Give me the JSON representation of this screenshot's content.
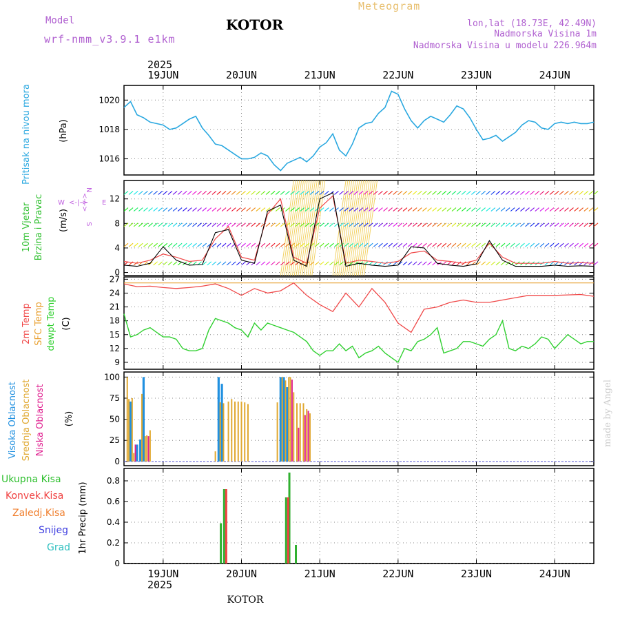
{
  "header": {
    "model_label": "Model",
    "model_name": "wrf-nmm_v3.9.1 e1km",
    "city": "KOTOR",
    "meteogram": "Meteogram",
    "coords": "lon,lat (18.73E, 42.49N)",
    "altitude": "Nadmorska Visina 1m",
    "model_altitude": "Nadmorska Visina u modelu 226.964m"
  },
  "footer_city": "KOTOR",
  "watermark": "made by Angel",
  "colors": {
    "pressure": "#2aa8e0",
    "t2m": "#f04848",
    "sfc": "#e8a030",
    "dew": "#30d030",
    "high_cloud": "#2090e0",
    "mid_cloud": "#e0a830",
    "low_cloud": "#e02090",
    "total_precip": "#30b030",
    "conv_precip": "#f04040",
    "freezing": "#f08030",
    "snow": "#4040e0",
    "hail": "#30c0c0",
    "wind_label": "#30c030",
    "compass": "#c060e0"
  },
  "time_axis": {
    "year_label": "2025",
    "days": [
      "19JUN",
      "20JUN",
      "21JUN",
      "22JUN",
      "23JUN",
      "24JUN"
    ]
  },
  "chart_data": [
    {
      "type": "line",
      "title": "Pritisak na nivou mora",
      "ylabel": "(hPa)",
      "ylim": [
        1014.9,
        1021.0
      ],
      "yticks": [
        1016,
        1018,
        1020
      ],
      "grid": true,
      "x_unit": "hours since 18JUN 12 UTC",
      "xlim": [
        0,
        144
      ],
      "series": [
        {
          "name": "Pritisak na nivou mora",
          "x": [
            0,
            2,
            4,
            6,
            8,
            10,
            12,
            14,
            16,
            18,
            20,
            22,
            24,
            26,
            28,
            30,
            32,
            34,
            36,
            38,
            40,
            42,
            44,
            46,
            48,
            50,
            52,
            54,
            56,
            58,
            60,
            62,
            64,
            66,
            68,
            70,
            72,
            74,
            76,
            78,
            80,
            82,
            84,
            86,
            88,
            90,
            92,
            94,
            96,
            98,
            100,
            102,
            104,
            106,
            108,
            110,
            112,
            114,
            116,
            118,
            120,
            122,
            124,
            126,
            128,
            130,
            132,
            134,
            136,
            138,
            140,
            142,
            144
          ],
          "values": [
            1019.5,
            1019.9,
            1019.0,
            1018.8,
            1018.5,
            1018.4,
            1018.3,
            1018.0,
            1018.1,
            1018.4,
            1018.7,
            1018.9,
            1018.1,
            1017.6,
            1017.0,
            1016.9,
            1016.6,
            1016.3,
            1016.0,
            1016.0,
            1016.1,
            1016.4,
            1016.2,
            1015.6,
            1015.2,
            1015.7,
            1015.9,
            1016.1,
            1015.8,
            1016.2,
            1016.8,
            1017.1,
            1017.7,
            1016.6,
            1016.2,
            1017.0,
            1018.1,
            1018.4,
            1018.5,
            1019.1,
            1019.5,
            1020.6,
            1020.4,
            1019.4,
            1018.6,
            1018.1,
            1018.6,
            1018.9,
            1018.7,
            1018.5,
            1019.0,
            1019.6,
            1019.4,
            1018.8,
            1018.0,
            1017.3,
            1017.4,
            1017.6,
            1017.2,
            1017.5,
            1017.8,
            1018.3,
            1018.6,
            1018.5,
            1018.1,
            1018.0,
            1018.4,
            1018.5,
            1018.4,
            1018.5,
            1018.4,
            1018.4,
            1018.5
          ]
        }
      ]
    },
    {
      "type": "line",
      "title": "10m Vjetar Brzina i Pravac",
      "ylabel": "(m/s)",
      "ylim": [
        -0.5,
        15
      ],
      "yticks": [
        0,
        4,
        8,
        12
      ],
      "grid": true,
      "x_unit": "hours since 18JUN 12 UTC",
      "compass": {
        "north": "N",
        "south": "S",
        "west": "W",
        "east": "E"
      },
      "series": [
        {
          "name": "speed",
          "x": [
            0,
            4,
            8,
            12,
            16,
            20,
            24,
            28,
            32,
            36,
            40,
            44,
            48,
            52,
            56,
            60,
            64,
            68,
            72,
            76,
            80,
            84,
            88,
            92,
            96,
            100,
            104,
            108,
            112,
            116,
            120,
            124,
            128,
            132,
            136,
            140,
            144
          ],
          "values": [
            1.2,
            1.0,
            1.5,
            4.2,
            2.0,
            1.2,
            1.3,
            6.5,
            7.0,
            2.0,
            1.5,
            10.0,
            11.0,
            2.0,
            1.0,
            12.0,
            13.0,
            1.0,
            1.5,
            1.2,
            1.0,
            1.2,
            4.2,
            4.0,
            1.5,
            1.2,
            1.0,
            1.4,
            5.2,
            2.0,
            1.0,
            1.0,
            1.0,
            1.2,
            1.0,
            1.1,
            1.0
          ]
        },
        {
          "name": "gusts",
          "x": [
            0,
            4,
            8,
            12,
            16,
            20,
            24,
            28,
            32,
            36,
            40,
            44,
            48,
            52,
            56,
            60,
            64,
            68,
            72,
            76,
            80,
            84,
            88,
            92,
            96,
            100,
            104,
            108,
            112,
            116,
            120,
            124,
            128,
            132,
            136,
            140,
            144
          ],
          "values": [
            1.8,
            1.5,
            2.0,
            3.0,
            2.5,
            1.8,
            2.0,
            5.5,
            7.5,
            2.5,
            2.0,
            9.5,
            12.0,
            2.5,
            1.5,
            10.5,
            12.5,
            1.5,
            2.0,
            1.8,
            1.5,
            1.8,
            3.2,
            3.5,
            2.0,
            1.8,
            1.5,
            2.0,
            4.8,
            2.5,
            1.5,
            1.5,
            1.5,
            1.8,
            1.5,
            1.6,
            1.5
          ]
        }
      ]
    },
    {
      "type": "line",
      "title": "2m Temp / SFC Temp / dewpt Temp",
      "ylabel": "(C)",
      "ylim": [
        7.5,
        27.5
      ],
      "yticks": [
        9,
        12,
        15,
        18,
        21,
        24,
        27
      ],
      "grid": true,
      "x_unit": "hours since 18JUN 12 UTC",
      "series": [
        {
          "name": "2m Temp",
          "x": [
            0,
            4,
            8,
            12,
            16,
            20,
            24,
            28,
            32,
            36,
            40,
            44,
            48,
            52,
            56,
            60,
            64,
            68,
            72,
            76,
            80,
            84,
            88,
            92,
            96,
            100,
            104,
            108,
            112,
            116,
            120,
            124,
            128,
            132,
            136,
            140,
            144
          ],
          "values": [
            26.0,
            25.4,
            25.5,
            25.2,
            25.0,
            25.2,
            25.5,
            26.0,
            25.0,
            23.5,
            25.0,
            24.0,
            24.5,
            26.2,
            23.5,
            21.5,
            20.0,
            24.0,
            21.0,
            25.0,
            22.0,
            17.5,
            15.5,
            20.5,
            21.0,
            22.0,
            22.5,
            22.0,
            22.0,
            22.5,
            23.0,
            23.5,
            23.5,
            23.5,
            23.6,
            23.7,
            23.3
          ]
        },
        {
          "name": "SFC Temp",
          "x": [
            0,
            144
          ],
          "values": [
            26.2,
            26.2
          ]
        },
        {
          "name": "dewpt Temp",
          "x": [
            0,
            2,
            4,
            6,
            8,
            10,
            12,
            14,
            16,
            18,
            20,
            22,
            24,
            26,
            28,
            30,
            32,
            34,
            36,
            38,
            40,
            42,
            44,
            46,
            48,
            50,
            52,
            54,
            56,
            58,
            60,
            62,
            64,
            66,
            68,
            70,
            72,
            74,
            76,
            78,
            80,
            82,
            84,
            86,
            88,
            90,
            92,
            94,
            96,
            98,
            100,
            102,
            104,
            106,
            108,
            110,
            112,
            114,
            116,
            118,
            120,
            122,
            124,
            126,
            128,
            130,
            132,
            134,
            136,
            138,
            140,
            142,
            144
          ],
          "values": [
            19.5,
            14.5,
            15.0,
            16.0,
            16.5,
            15.5,
            14.5,
            14.5,
            14.0,
            12.0,
            11.5,
            11.5,
            12.0,
            16.0,
            18.5,
            18.0,
            17.5,
            16.5,
            16.0,
            14.5,
            17.5,
            16.0,
            17.5,
            17.0,
            16.5,
            16.0,
            15.5,
            14.5,
            13.5,
            11.5,
            10.5,
            11.5,
            11.5,
            13.0,
            11.5,
            12.5,
            10.0,
            11.0,
            11.5,
            12.5,
            11.0,
            10.0,
            9.0,
            12.0,
            11.5,
            13.5,
            14.0,
            15.0,
            16.5,
            11.0,
            11.5,
            12.0,
            13.5,
            13.5,
            13.0,
            12.5,
            14.0,
            15.0,
            18.0,
            12.0,
            11.5,
            12.5,
            12.0,
            13.0,
            14.5,
            14.0,
            12.0,
            13.5,
            15.0,
            14.0,
            13.0,
            13.5,
            13.5
          ]
        }
      ]
    },
    {
      "type": "bar",
      "title": "Visoka / Srednja / Niska Oblacnost",
      "ylabel": "(%)",
      "ylim": [
        -5,
        106
      ],
      "yticks": [
        0,
        25,
        50,
        75,
        100
      ],
      "grid": true,
      "x_unit": "hours since 18JUN 12 UTC",
      "series": [
        {
          "name": "Visoka Oblacnost",
          "x": [
            2,
            4,
            5,
            6,
            29,
            30,
            31,
            48,
            49,
            50
          ],
          "values": [
            71,
            20,
            26,
            100,
            100,
            92,
            0,
            100,
            100,
            88
          ]
        },
        {
          "name": "Srednja Oblacnost",
          "x": [
            1,
            1.5,
            2.5,
            3,
            5.5,
            6.5,
            7,
            8,
            28,
            29.5,
            30.5,
            32,
            33,
            34,
            35,
            36,
            37,
            38,
            47,
            48.5,
            49.5,
            50.5,
            51,
            52,
            53,
            54,
            55,
            56,
            57
          ],
          "values": [
            100,
            74,
            75,
            10,
            80,
            30,
            31,
            37,
            12,
            70,
            69,
            71,
            74,
            71,
            71,
            71,
            70,
            68,
            70,
            100,
            96,
            100,
            100,
            82,
            69,
            69,
            69,
            62,
            57
          ]
        },
        {
          "name": "Niska Oblacnost",
          "x": [
            3.5,
            7.5,
            51.5,
            53.5,
            55.5,
            56.5
          ],
          "values": [
            20,
            30,
            97,
            40,
            55,
            60
          ]
        }
      ]
    },
    {
      "type": "bar",
      "title": "1hr Precip",
      "ylabel": "1hr Precip (mm)",
      "ylim": [
        0,
        0.92
      ],
      "yticks": [
        0,
        0.2,
        0.4,
        0.6,
        0.8
      ],
      "grid": true,
      "x_unit": "hours since 18JUN 12 UTC",
      "legend": [
        "Ukupna Kisa",
        "Konvek.Kisa",
        "Zaledj.Kisa",
        "Snijeg",
        "Grad"
      ],
      "series": [
        {
          "name": "Ukupna Kisa",
          "x": [
            30,
            31,
            50,
            51,
            53
          ],
          "values": [
            0.39,
            0.72,
            0.64,
            0.88,
            0.18
          ]
        },
        {
          "name": "Konvek.Kisa",
          "x": [
            30,
            31,
            50,
            51,
            53
          ],
          "values": [
            0.0,
            0.72,
            0.64,
            0.0,
            0.0
          ]
        }
      ]
    }
  ]
}
